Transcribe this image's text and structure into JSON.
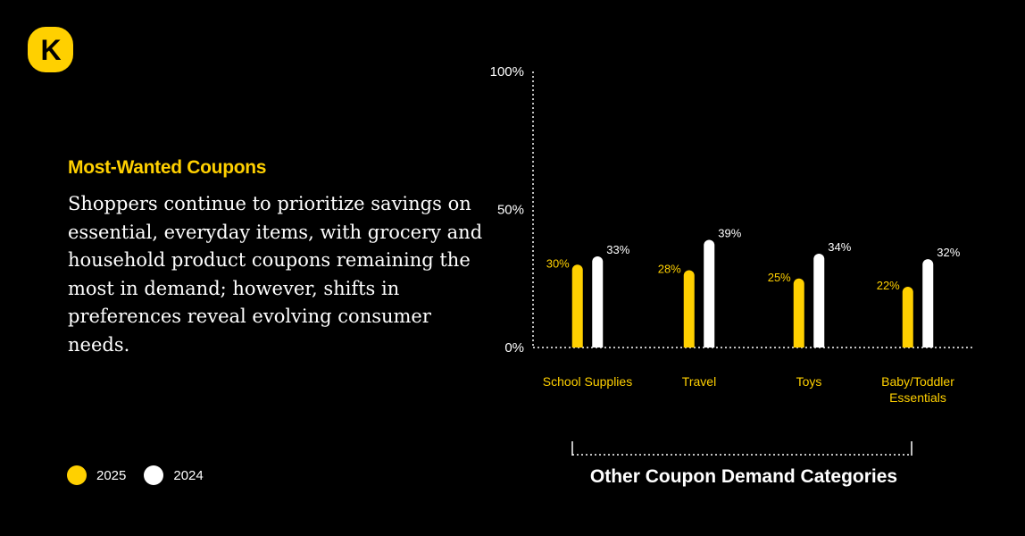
{
  "logo": {
    "letter": "K"
  },
  "heading": "Most-Wanted Coupons",
  "body": "Shoppers continue to prioritize savings on essential, everyday items, with grocery and household product coupons remaining the most in demand; however, shifts in preferences reveal evolving consumer needs.",
  "legend": [
    {
      "label": "2025",
      "color": "#FFD000"
    },
    {
      "label": "2024",
      "color": "#FFFFFF"
    }
  ],
  "colors": {
    "background": "#000000",
    "accent": "#FFD000",
    "secondary": "#FFFFFF",
    "axis": "#FFFFFF"
  },
  "chart_data": {
    "type": "bar",
    "title": "",
    "xlabel": "Other Coupon Demand Categories",
    "ylabel": "",
    "ylim": [
      0,
      100
    ],
    "yticks": [
      "0%",
      "50%",
      "100%"
    ],
    "yticks_values": [
      0,
      50,
      100
    ],
    "categories": [
      "School Supplies",
      "Travel",
      "Toys",
      "Baby/Toddler Essentials"
    ],
    "category_lines": [
      [
        "School Supplies"
      ],
      [
        "Travel"
      ],
      [
        "Toys"
      ],
      [
        "Baby/Toddler",
        "Essentials"
      ]
    ],
    "series": [
      {
        "name": "2025",
        "color": "#FFD000",
        "values": [
          30,
          28,
          25,
          22
        ],
        "labels": [
          "30%",
          "28%",
          "25%",
          "22%"
        ]
      },
      {
        "name": "2024",
        "color": "#FFFFFF",
        "values": [
          33,
          39,
          34,
          32
        ],
        "labels": [
          "33%",
          "39%",
          "34%",
          "32%"
        ]
      }
    ]
  }
}
